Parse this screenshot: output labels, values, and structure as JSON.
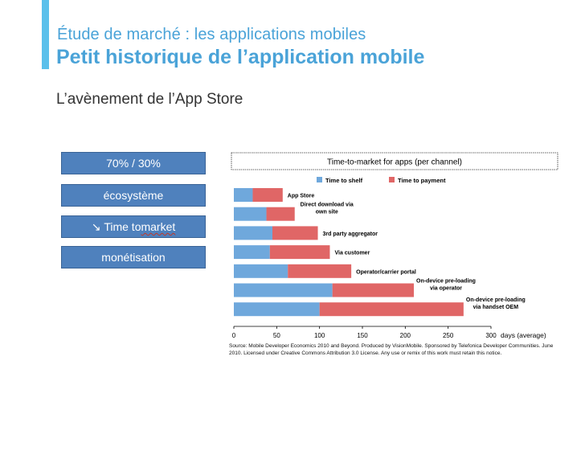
{
  "header": {
    "subtitle": "Étude de marché : les applications mobiles",
    "title": "Petit historique de l’application mobile",
    "section": "L’avènement de l’App Store",
    "accent_color": "#5bc0eb"
  },
  "key_points": {
    "items": [
      {
        "id": "revenue-split",
        "label": "70% / 30%"
      },
      {
        "id": "ecosystem",
        "label": "écosystème"
      },
      {
        "id": "time-to-market",
        "arrow": "↘",
        "prefix": "Time to ",
        "squiggled": "market"
      },
      {
        "id": "monetization",
        "label": "monétisation"
      }
    ],
    "color": "#4f81bd"
  },
  "chart_data": {
    "type": "bar",
    "orientation": "horizontal",
    "stacked": true,
    "title": "Time-to-market for apps (per channel)",
    "categories": [
      "App Store",
      "Direct download via own site",
      "3rd party aggregator",
      "Via customer",
      "Operator/carrier portal",
      "On-device pre-loading via operator",
      "On-device pre-loading via handset OEM"
    ],
    "category_lines": [
      [
        "App Store"
      ],
      [
        "Direct download via",
        "own site"
      ],
      [
        "3rd party aggregator"
      ],
      [
        "Via customer"
      ],
      [
        "Operator/carrier portal"
      ],
      [
        "On-device pre-loading",
        "via operator"
      ],
      [
        "On-device pre-loading",
        "via handset OEM"
      ]
    ],
    "series": [
      {
        "name": "Time to shelf",
        "color": "#6fa8dc",
        "values": [
          22,
          38,
          45,
          42,
          63,
          115,
          100
        ]
      },
      {
        "name": "Time to payment",
        "color": "#e06666",
        "values": [
          35,
          33,
          53,
          70,
          74,
          95,
          168
        ]
      }
    ],
    "xlabel": "days (average)",
    "xlim": [
      0,
      300
    ],
    "xticks": [
      0,
      50,
      100,
      150,
      200,
      250,
      300
    ],
    "legend": "top",
    "source": "Source: Mobile Developer Economics 2010 and Beyond. Produced by VisionMobile. Sponsored by Telefonica Developer Communities. June 2010. Licensed under Creative Commons Attribution 3.0 License. Any use or remix of this work must retain this notice."
  }
}
